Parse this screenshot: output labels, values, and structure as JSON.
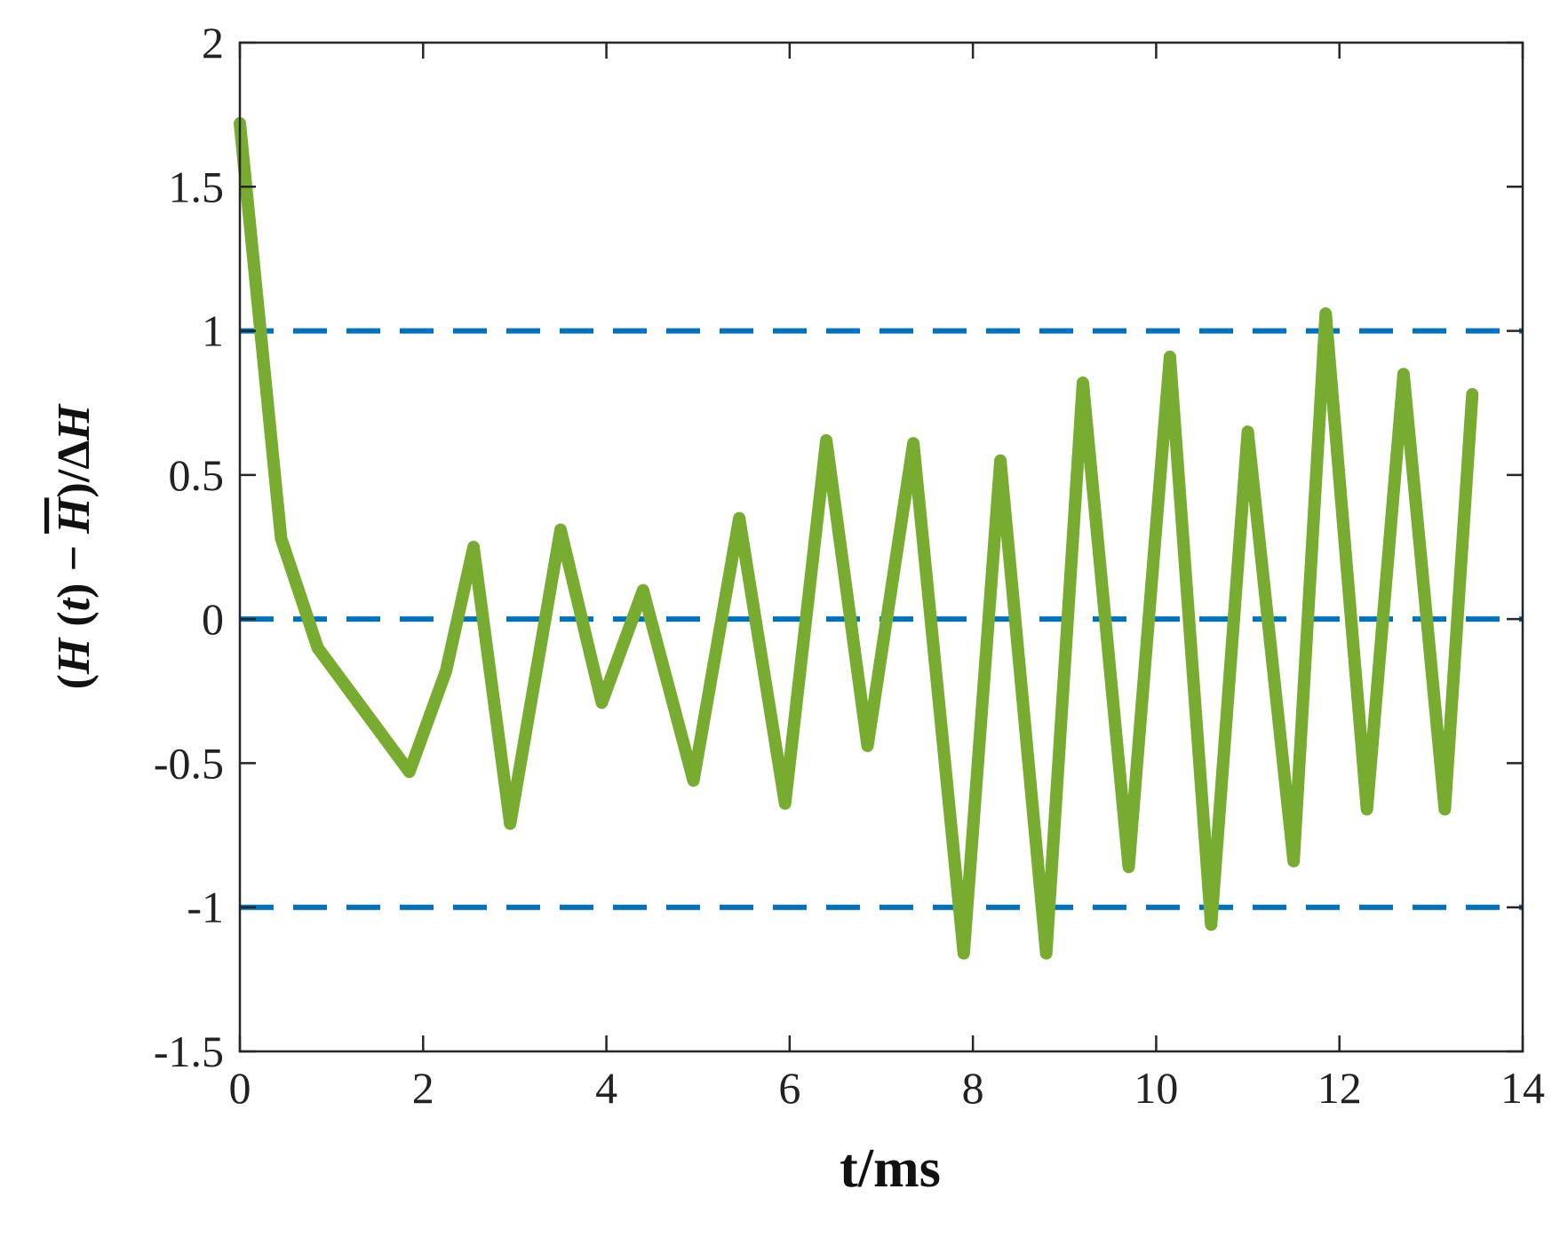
{
  "chart_data": {
    "type": "line",
    "xlabel": {
      "var": "t",
      "unit": "/ms"
    },
    "ylabel": {
      "open": "(",
      "h1": "H",
      "t_open": " (",
      "t_var": "t",
      "t_close": ") − ",
      "hbar": "H",
      "close": ")/Δ",
      "h2": "H"
    },
    "xlim": [
      0,
      14
    ],
    "ylim": [
      -1.5,
      2
    ],
    "xticks": [
      0,
      2,
      4,
      6,
      8,
      10,
      12,
      14
    ],
    "yticks": [
      -1.5,
      -1,
      -0.5,
      0,
      0.5,
      1,
      1.5,
      2
    ],
    "xtick_labels": [
      "0",
      "2",
      "4",
      "6",
      "8",
      "10",
      "12",
      "14"
    ],
    "ytick_labels": [
      "-1.5",
      "-1",
      "-0.5",
      "0",
      "0.5",
      "1",
      "1.5",
      "2"
    ],
    "grid": false,
    "series": [
      {
        "color": "#77ac30",
        "style": "solid",
        "x": [
          0,
          0.45,
          0.85,
          1.85,
          2.25,
          2.55,
          2.95,
          3.5,
          3.95,
          4.4,
          4.95,
          5.45,
          5.95,
          6.4,
          6.85,
          7.35,
          7.9,
          8.3,
          8.8,
          9.2,
          9.7,
          10.15,
          10.6,
          11.0,
          11.5,
          11.85,
          12.3,
          12.7,
          13.15,
          13.45
        ],
        "y": [
          1.72,
          0.28,
          -0.1,
          -0.53,
          -0.18,
          0.25,
          -0.71,
          0.31,
          -0.29,
          0.1,
          -0.56,
          0.35,
          -0.64,
          0.62,
          -0.44,
          0.61,
          -1.16,
          0.55,
          -1.16,
          0.82,
          -0.86,
          0.91,
          -1.06,
          0.65,
          -0.84,
          1.06,
          -0.66,
          0.85,
          -0.66,
          0.78
        ]
      },
      {
        "color": "#0072bd",
        "style": "dashed",
        "x": [
          0,
          14
        ],
        "y": [
          1,
          1
        ]
      },
      {
        "color": "#0072bd",
        "style": "dashed",
        "x": [
          0,
          14
        ],
        "y": [
          0,
          0
        ]
      },
      {
        "color": "#0072bd",
        "style": "dashed",
        "x": [
          0,
          14
        ],
        "y": [
          -1,
          -1
        ]
      }
    ]
  }
}
